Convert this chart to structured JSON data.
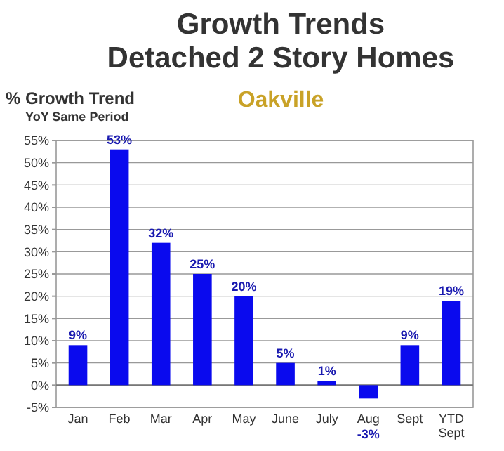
{
  "chart_data": {
    "type": "bar",
    "title": "Growth Trends\nDetached 2 Story Homes",
    "subtitle": "Oakville",
    "ylabel": "% Growth Trend",
    "annotations": [
      "YoY Same Period"
    ],
    "categories": [
      "Jan",
      "Feb",
      "Mar",
      "Apr",
      "May",
      "June",
      "July",
      "Aug",
      "Sept",
      "YTD\nSept"
    ],
    "values": [
      9,
      53,
      32,
      25,
      20,
      5,
      1,
      -3,
      9,
      19
    ],
    "value_labels": [
      "9%",
      "53%",
      "32%",
      "25%",
      "20%",
      "5%",
      "1%",
      "-3%",
      "9%",
      "19%"
    ],
    "color": "#0a0aee",
    "ylim": [
      -5,
      55
    ],
    "yticks": [
      {
        "value": -5,
        "label": "-5%"
      },
      {
        "value": 0,
        "label": "0%"
      },
      {
        "value": 5,
        "label": "5%"
      },
      {
        "value": 10,
        "label": "10%"
      },
      {
        "value": 15,
        "label": "15%"
      },
      {
        "value": 20,
        "label": "20%"
      },
      {
        "value": 25,
        "label": "25%"
      },
      {
        "value": 30,
        "label": "30%"
      },
      {
        "value": 35,
        "label": "35%"
      },
      {
        "value": 40,
        "label": "40%"
      },
      {
        "value": 45,
        "label": "45%"
      },
      {
        "value": 50,
        "label": "50%"
      },
      {
        "value": 55,
        "label": "55%"
      }
    ],
    "grid": "y"
  }
}
